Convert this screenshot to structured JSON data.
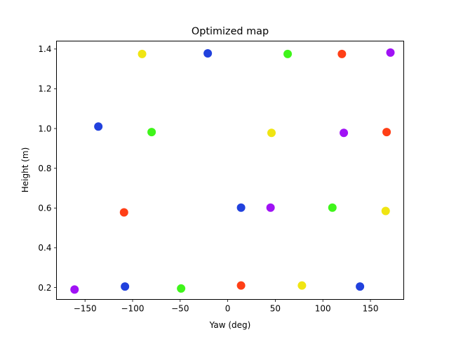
{
  "chart_data": {
    "type": "scatter",
    "title": "Optimized map",
    "xlabel": "Yaw (deg)",
    "ylabel": "Height (m)",
    "xlim": [
      -180,
      185
    ],
    "ylim": [
      0.14,
      1.44
    ],
    "xticks": [
      -150,
      -100,
      -50,
      0,
      50,
      100,
      150
    ],
    "yticks": [
      0.2,
      0.4,
      0.6,
      0.8,
      1.0,
      1.2,
      1.4
    ],
    "xtick_labels": [
      "−150",
      "−100",
      "−50",
      "0",
      "50",
      "100",
      "150"
    ],
    "ytick_labels": [
      "0.2",
      "0.4",
      "0.6",
      "0.8",
      "1.0",
      "1.2",
      "1.4"
    ],
    "grid": false,
    "colors": {
      "blue": "#2141dd",
      "green": "#3ff51a",
      "yellow": "#f0e512",
      "red": "#ff3f16",
      "purple": "#a012f5"
    },
    "points": [
      {
        "x": -161,
        "y": 0.19,
        "color": "purple"
      },
      {
        "x": -108,
        "y": 0.205,
        "color": "blue"
      },
      {
        "x": -49,
        "y": 0.195,
        "color": "green"
      },
      {
        "x": 14,
        "y": 0.21,
        "color": "red"
      },
      {
        "x": 78,
        "y": 0.21,
        "color": "yellow"
      },
      {
        "x": 139,
        "y": 0.205,
        "color": "blue"
      },
      {
        "x": -109,
        "y": 0.578,
        "color": "red"
      },
      {
        "x": 14,
        "y": 0.602,
        "color": "blue"
      },
      {
        "x": 45,
        "y": 0.602,
        "color": "purple"
      },
      {
        "x": 110,
        "y": 0.602,
        "color": "green"
      },
      {
        "x": 166,
        "y": 0.585,
        "color": "yellow"
      },
      {
        "x": -136,
        "y": 1.01,
        "color": "blue"
      },
      {
        "x": -80,
        "y": 0.982,
        "color": "green"
      },
      {
        "x": 46,
        "y": 0.978,
        "color": "yellow"
      },
      {
        "x": 122,
        "y": 0.978,
        "color": "purple"
      },
      {
        "x": 167,
        "y": 0.982,
        "color": "red"
      },
      {
        "x": -90,
        "y": 1.375,
        "color": "yellow"
      },
      {
        "x": -21,
        "y": 1.378,
        "color": "blue"
      },
      {
        "x": 63,
        "y": 1.375,
        "color": "green"
      },
      {
        "x": 120,
        "y": 1.375,
        "color": "red"
      },
      {
        "x": 171,
        "y": 1.382,
        "color": "purple"
      }
    ]
  }
}
